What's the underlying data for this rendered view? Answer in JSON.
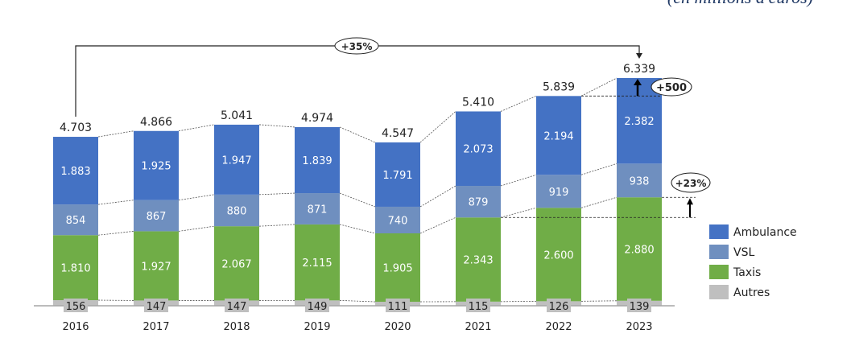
{
  "chart_data": {
    "type": "bar",
    "stacked": true,
    "subtitle": "(en millions d'euros)",
    "categories": [
      "2016",
      "2017",
      "2018",
      "2019",
      "2020",
      "2021",
      "2022",
      "2023"
    ],
    "series": [
      {
        "name": "Autres",
        "color": "#bfbfbf",
        "values": [
          156,
          147,
          147,
          149,
          111,
          115,
          126,
          139
        ]
      },
      {
        "name": "Taxis",
        "color": "#70ad47",
        "values": [
          1810,
          1927,
          2067,
          2115,
          1905,
          2343,
          2600,
          2880
        ]
      },
      {
        "name": "VSL",
        "color": "#6f8fbf",
        "values": [
          854,
          867,
          880,
          871,
          740,
          879,
          919,
          938
        ]
      },
      {
        "name": "Ambulance",
        "color": "#4472c4",
        "values": [
          1883,
          1925,
          1947,
          1839,
          1791,
          2073,
          2194,
          2382
        ]
      }
    ],
    "totals": [
      "4.703",
      "4.866",
      "5.041",
      "4.974",
      "4.547",
      "5.410",
      "5.839",
      "6.339"
    ],
    "total_values": [
      4703,
      4866,
      5041,
      4974,
      4547,
      5410,
      5839,
      6339
    ],
    "value_labels": {
      "Autres": [
        "156",
        "147",
        "147",
        "149",
        "111",
        "115",
        "126",
        "139"
      ],
      "Taxis": [
        "1.810",
        "1.927",
        "2.067",
        "2.115",
        "1.905",
        "2.343",
        "2.600",
        "2.880"
      ],
      "VSL": [
        "854",
        "867",
        "880",
        "871",
        "740",
        "879",
        "919",
        "938"
      ],
      "Ambulance": [
        "1.883",
        "1.925",
        "1.947",
        "1.839",
        "1.791",
        "2.073",
        "2.194",
        "2.382"
      ]
    },
    "legend": [
      "Ambulance",
      "VSL",
      "Taxis",
      "Autres"
    ],
    "legend_position": "right",
    "annotations": [
      {
        "label": "+35%",
        "from": "2016",
        "to": "2023",
        "kind": "total-growth"
      },
      {
        "label": "+500",
        "from": "2022",
        "to": "2023",
        "kind": "total-increase"
      },
      {
        "label": "+23%",
        "from": "2021",
        "to": "2023",
        "kind": "taxis-growth"
      }
    ],
    "xlabel": "",
    "ylabel": "",
    "ylim": [
      0,
      6339
    ],
    "grid": false
  }
}
